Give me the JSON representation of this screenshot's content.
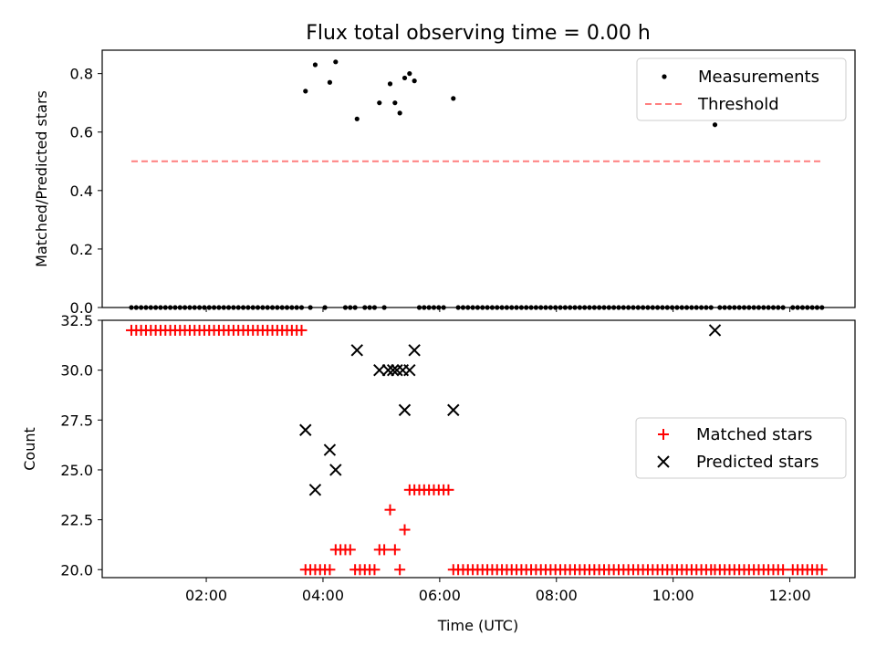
{
  "chart_data": [
    {
      "type": "scatter",
      "title": "Flux total observing time = 0.00 h",
      "xlabel": "",
      "ylabel": "Matched/Predicted stars",
      "ylim": [
        0,
        0.88
      ],
      "xlim": [
        "00:13",
        "13:07"
      ],
      "y_ticks": [
        0.0,
        0.2,
        0.4,
        0.6,
        0.8
      ],
      "y_tick_labels": [
        "0.0",
        "0.2",
        "0.4",
        "0.6",
        "0.8"
      ],
      "legend": {
        "placement": "top-right",
        "entries": [
          "Measurements",
          "Threshold"
        ]
      },
      "series": [
        {
          "name": "Measurements",
          "color": "#000000",
          "marker": "dot",
          "points": [
            [
              "03:42",
              0.74
            ],
            [
              "03:52",
              0.83
            ],
            [
              "04:07",
              0.77
            ],
            [
              "04:13",
              0.84
            ],
            [
              "04:35",
              0.645
            ],
            [
              "04:58",
              0.7
            ],
            [
              "05:09",
              0.765
            ],
            [
              "05:14",
              0.7
            ],
            [
              "05:19",
              0.665
            ],
            [
              "05:24",
              0.785
            ],
            [
              "05:29",
              0.8
            ],
            [
              "05:34",
              0.775
            ],
            [
              "06:14",
              0.715
            ],
            [
              "10:43",
              0.625
            ]
          ],
          "zero_points": [
            "00:43",
            "00:48",
            "00:53",
            "00:58",
            "01:03",
            "01:08",
            "01:13",
            "01:18",
            "01:23",
            "01:28",
            "01:33",
            "01:38",
            "01:43",
            "01:48",
            "01:53",
            "01:58",
            "02:03",
            "02:08",
            "02:13",
            "02:18",
            "02:23",
            "02:28",
            "02:33",
            "02:38",
            "02:43",
            "02:48",
            "02:53",
            "02:58",
            "03:03",
            "03:08",
            "03:13",
            "03:18",
            "03:23",
            "03:28",
            "03:33",
            "03:38",
            "03:47",
            "04:02",
            "04:23",
            "04:28",
            "04:33",
            "04:43",
            "04:48",
            "04:53",
            "05:03",
            "05:39",
            "05:44",
            "05:49",
            "05:54",
            "05:59",
            "06:04",
            "06:19",
            "06:24",
            "06:29",
            "06:34",
            "06:39",
            "06:44",
            "06:49",
            "06:54",
            "06:59",
            "07:04",
            "07:09",
            "07:14",
            "07:19",
            "07:24",
            "07:29",
            "07:34",
            "07:39",
            "07:44",
            "07:49",
            "07:54",
            "07:59",
            "08:04",
            "08:09",
            "08:14",
            "08:19",
            "08:24",
            "08:29",
            "08:34",
            "08:39",
            "08:44",
            "08:49",
            "08:54",
            "08:59",
            "09:04",
            "09:09",
            "09:14",
            "09:19",
            "09:24",
            "09:29",
            "09:34",
            "09:39",
            "09:44",
            "09:49",
            "09:54",
            "09:59",
            "10:04",
            "10:09",
            "10:14",
            "10:19",
            "10:24",
            "10:29",
            "10:34",
            "10:39",
            "10:48",
            "10:53",
            "10:58",
            "11:03",
            "11:08",
            "11:13",
            "11:18",
            "11:23",
            "11:28",
            "11:33",
            "11:38",
            "11:43",
            "11:48",
            "11:53",
            "12:03",
            "12:08",
            "12:13",
            "12:18",
            "12:23",
            "12:28",
            "12:33"
          ]
        },
        {
          "name": "Threshold",
          "color": "#ff7f7f",
          "style": "dashed",
          "points": [
            [
              "00:43",
              0.5
            ],
            [
              "12:33",
              0.5
            ]
          ]
        }
      ]
    },
    {
      "type": "scatter",
      "title": "",
      "xlabel": "Time (UTC)",
      "ylabel": "Count",
      "ylim": [
        19.6,
        32.5
      ],
      "xlim": [
        "00:13",
        "13:07"
      ],
      "x_ticks": [
        "02:00",
        "04:00",
        "06:00",
        "08:00",
        "10:00",
        "12:00"
      ],
      "y_ticks": [
        20.0,
        22.5,
        25.0,
        27.5,
        30.0,
        32.5
      ],
      "y_tick_labels": [
        "20.0",
        "22.5",
        "25.0",
        "27.5",
        "30.0",
        "32.5"
      ],
      "legend": {
        "placement": "center-right",
        "entries": [
          "Matched stars",
          "Predicted stars"
        ]
      },
      "series": [
        {
          "name": "Matched stars",
          "color": "#ff0000",
          "marker": "plus",
          "points": [
            [
              "00:43",
              32
            ],
            [
              "00:48",
              32
            ],
            [
              "00:53",
              32
            ],
            [
              "00:58",
              32
            ],
            [
              "01:03",
              32
            ],
            [
              "01:08",
              32
            ],
            [
              "01:13",
              32
            ],
            [
              "01:18",
              32
            ],
            [
              "01:23",
              32
            ],
            [
              "01:28",
              32
            ],
            [
              "01:33",
              32
            ],
            [
              "01:38",
              32
            ],
            [
              "01:43",
              32
            ],
            [
              "01:48",
              32
            ],
            [
              "01:53",
              32
            ],
            [
              "01:58",
              32
            ],
            [
              "02:03",
              32
            ],
            [
              "02:08",
              32
            ],
            [
              "02:13",
              32
            ],
            [
              "02:18",
              32
            ],
            [
              "02:23",
              32
            ],
            [
              "02:28",
              32
            ],
            [
              "02:33",
              32
            ],
            [
              "02:38",
              32
            ],
            [
              "02:43",
              32
            ],
            [
              "02:48",
              32
            ],
            [
              "02:53",
              32
            ],
            [
              "02:58",
              32
            ],
            [
              "03:03",
              32
            ],
            [
              "03:08",
              32
            ],
            [
              "03:13",
              32
            ],
            [
              "03:18",
              32
            ],
            [
              "03:23",
              32
            ],
            [
              "03:28",
              32
            ],
            [
              "03:33",
              32
            ],
            [
              "03:38",
              32
            ],
            [
              "03:42",
              20
            ],
            [
              "03:47",
              20
            ],
            [
              "03:52",
              20
            ],
            [
              "03:57",
              20
            ],
            [
              "04:02",
              20
            ],
            [
              "04:07",
              20
            ],
            [
              "04:13",
              21
            ],
            [
              "04:18",
              21
            ],
            [
              "04:23",
              21
            ],
            [
              "04:28",
              21
            ],
            [
              "04:33",
              20
            ],
            [
              "04:38",
              20
            ],
            [
              "04:43",
              20
            ],
            [
              "04:48",
              20
            ],
            [
              "04:53",
              20
            ],
            [
              "04:58",
              21
            ],
            [
              "05:03",
              21
            ],
            [
              "05:09",
              23
            ],
            [
              "05:14",
              21
            ],
            [
              "05:19",
              20
            ],
            [
              "05:24",
              22
            ],
            [
              "05:29",
              24
            ],
            [
              "05:34",
              24
            ],
            [
              "05:39",
              24
            ],
            [
              "05:44",
              24
            ],
            [
              "05:49",
              24
            ],
            [
              "05:54",
              24
            ],
            [
              "05:59",
              24
            ],
            [
              "06:04",
              24
            ],
            [
              "06:09",
              24
            ],
            [
              "06:14",
              20
            ],
            [
              "06:19",
              20
            ],
            [
              "06:24",
              20
            ],
            [
              "06:29",
              20
            ],
            [
              "06:34",
              20
            ],
            [
              "06:39",
              20
            ],
            [
              "06:44",
              20
            ],
            [
              "06:49",
              20
            ],
            [
              "06:54",
              20
            ],
            [
              "06:59",
              20
            ],
            [
              "07:04",
              20
            ],
            [
              "07:09",
              20
            ],
            [
              "07:14",
              20
            ],
            [
              "07:19",
              20
            ],
            [
              "07:24",
              20
            ],
            [
              "07:29",
              20
            ],
            [
              "07:34",
              20
            ],
            [
              "07:39",
              20
            ],
            [
              "07:44",
              20
            ],
            [
              "07:49",
              20
            ],
            [
              "07:54",
              20
            ],
            [
              "07:59",
              20
            ],
            [
              "08:04",
              20
            ],
            [
              "08:09",
              20
            ],
            [
              "08:14",
              20
            ],
            [
              "08:19",
              20
            ],
            [
              "08:24",
              20
            ],
            [
              "08:29",
              20
            ],
            [
              "08:34",
              20
            ],
            [
              "08:39",
              20
            ],
            [
              "08:44",
              20
            ],
            [
              "08:49",
              20
            ],
            [
              "08:54",
              20
            ],
            [
              "08:59",
              20
            ],
            [
              "09:04",
              20
            ],
            [
              "09:09",
              20
            ],
            [
              "09:14",
              20
            ],
            [
              "09:19",
              20
            ],
            [
              "09:24",
              20
            ],
            [
              "09:29",
              20
            ],
            [
              "09:34",
              20
            ],
            [
              "09:39",
              20
            ],
            [
              "09:44",
              20
            ],
            [
              "09:49",
              20
            ],
            [
              "09:54",
              20
            ],
            [
              "09:59",
              20
            ],
            [
              "10:04",
              20
            ],
            [
              "10:09",
              20
            ],
            [
              "10:14",
              20
            ],
            [
              "10:19",
              20
            ],
            [
              "10:24",
              20
            ],
            [
              "10:29",
              20
            ],
            [
              "10:34",
              20
            ],
            [
              "10:39",
              20
            ],
            [
              "10:43",
              20
            ],
            [
              "10:48",
              20
            ],
            [
              "10:53",
              20
            ],
            [
              "10:58",
              20
            ],
            [
              "11:03",
              20
            ],
            [
              "11:08",
              20
            ],
            [
              "11:13",
              20
            ],
            [
              "11:18",
              20
            ],
            [
              "11:23",
              20
            ],
            [
              "11:28",
              20
            ],
            [
              "11:33",
              20
            ],
            [
              "11:38",
              20
            ],
            [
              "11:43",
              20
            ],
            [
              "11:48",
              20
            ],
            [
              "11:53",
              20
            ],
            [
              "12:03",
              20
            ],
            [
              "12:08",
              20
            ],
            [
              "12:13",
              20
            ],
            [
              "12:18",
              20
            ],
            [
              "12:23",
              20
            ],
            [
              "12:28",
              20
            ],
            [
              "12:33",
              20
            ]
          ]
        },
        {
          "name": "Predicted stars",
          "color": "#000000",
          "marker": "x",
          "points": [
            [
              "03:42",
              27
            ],
            [
              "03:52",
              24
            ],
            [
              "04:07",
              26
            ],
            [
              "04:13",
              25
            ],
            [
              "04:35",
              31
            ],
            [
              "04:58",
              30
            ],
            [
              "05:07",
              30
            ],
            [
              "05:12",
              30
            ],
            [
              "05:16",
              30
            ],
            [
              "05:22",
              30
            ],
            [
              "05:24",
              28
            ],
            [
              "05:29",
              30
            ],
            [
              "05:34",
              31
            ],
            [
              "06:14",
              28
            ],
            [
              "10:43",
              32
            ]
          ]
        }
      ]
    }
  ]
}
